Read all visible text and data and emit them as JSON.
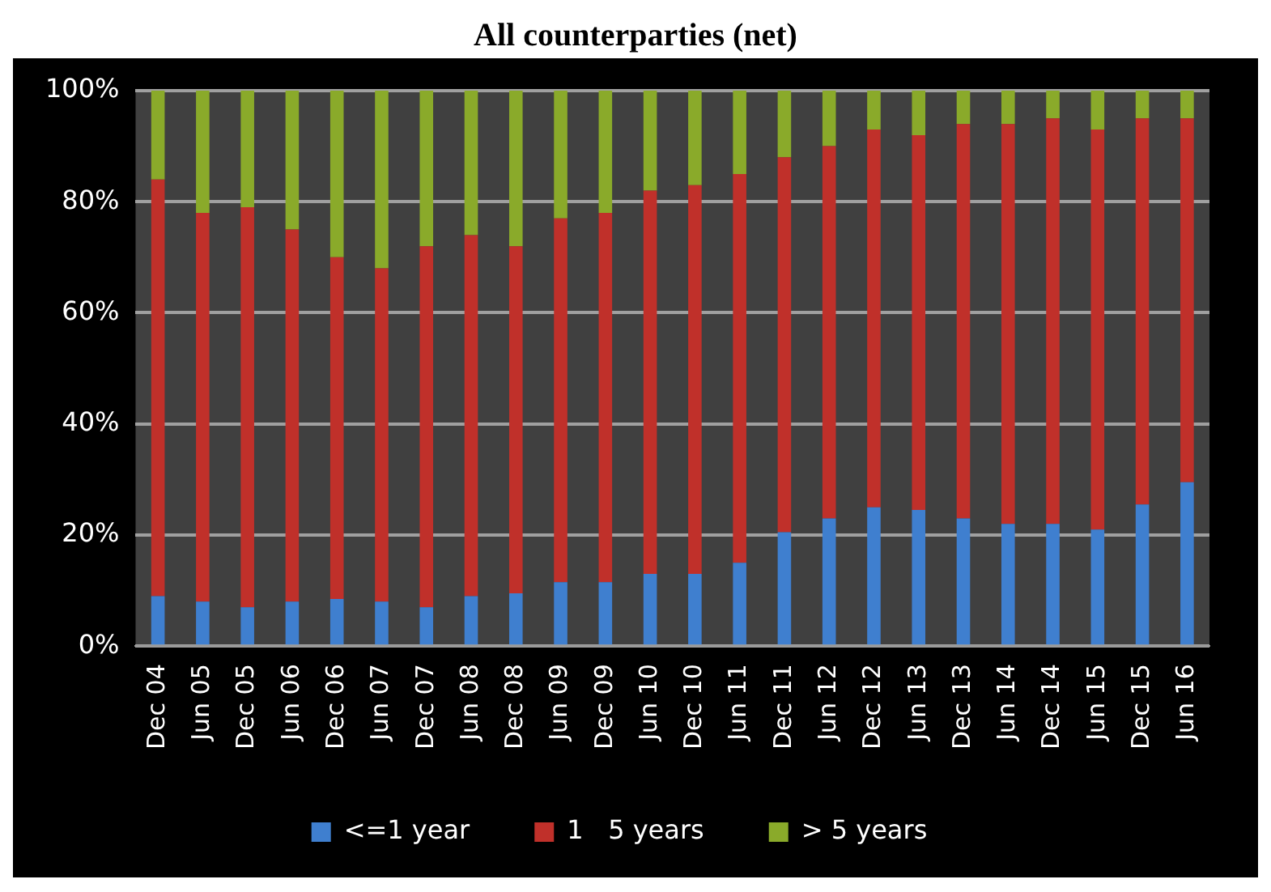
{
  "chart_data": {
    "type": "bar",
    "title": "All counterparties (net)",
    "categories": [
      "Dec 04",
      "Jun 05",
      "Dec 05",
      "Jun 06",
      "Dec 06",
      "Jun 07",
      "Dec 07",
      "Jun 08",
      "Dec 08",
      "Jun 09",
      "Dec 09",
      "Jun 10",
      "Dec 10",
      "Jun 11",
      "Dec 11",
      "Jun 12",
      "Dec 12",
      "Jun 13",
      "Dec 13",
      "Jun 14",
      "Dec 14",
      "Jun 15",
      "Dec 15",
      "Jun 16"
    ],
    "series": [
      {
        "name": "<=1 year",
        "color": "#3f7fcf",
        "values": [
          9,
          8,
          7,
          8,
          8.5,
          8,
          7,
          9,
          9.5,
          11.5,
          11.5,
          13,
          13,
          15,
          20.5,
          23,
          25,
          24.5,
          23,
          22,
          22,
          21,
          25.5,
          29.5
        ]
      },
      {
        "name": "1   5 years",
        "color": "#c0302a",
        "values": [
          75,
          70,
          72,
          67,
          61.5,
          60,
          65,
          65,
          62.5,
          65.5,
          66.5,
          69,
          70,
          70,
          67.5,
          67,
          68,
          67.5,
          71,
          72,
          73,
          72,
          69.5,
          65.5
        ]
      },
      {
        "name": "> 5 years",
        "color": "#8aaa2a",
        "values": [
          16,
          22,
          21,
          25,
          30,
          32,
          28,
          26,
          28,
          23,
          22,
          18,
          17,
          15,
          12,
          10,
          7,
          8,
          6,
          6,
          5,
          7,
          5,
          5
        ]
      }
    ],
    "stacked": true,
    "ylim": [
      0,
      100
    ],
    "yticks": [
      {
        "value": 0,
        "label": "0%"
      },
      {
        "value": 20,
        "label": "20%"
      },
      {
        "value": 40,
        "label": "40%"
      },
      {
        "value": 60,
        "label": "60%"
      },
      {
        "value": 80,
        "label": "80%"
      },
      {
        "value": 100,
        "label": "100%"
      }
    ],
    "grid": "y",
    "legend": "bottom"
  }
}
